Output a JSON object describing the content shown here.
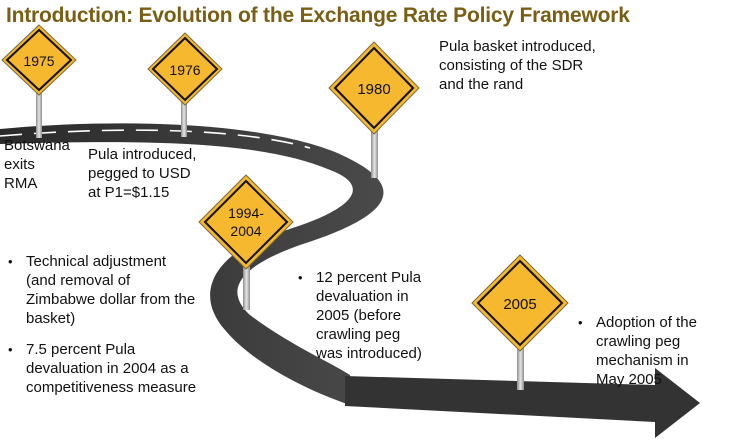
{
  "title": "Introduction: Evolution of the Exchange Rate Policy Framework",
  "signs": {
    "y1975": "1975",
    "y1976": "1976",
    "y1980": "1980",
    "y1994_line1": "1994-",
    "y1994_line2": "2004",
    "y2005": "2005"
  },
  "events": {
    "e1975": [
      "Botswana",
      "exits",
      "RMA"
    ],
    "e1976": [
      "Pula introduced,",
      "pegged to USD",
      "at P1=$1.15"
    ],
    "e1980": [
      "Pula basket introduced,",
      "consisting of the SDR",
      "and the rand"
    ],
    "e1994": [
      [
        "Technical adjustment",
        "(and removal of",
        "Zimbabwe dollar from the",
        "basket)"
      ],
      [
        "7.5 percent Pula",
        "devaluation in 2004 as a",
        "competitiveness measure"
      ]
    ],
    "e2005a": [
      "12 percent Pula",
      "devaluation in",
      "2005 (before",
      "crawling peg",
      "was introduced)"
    ],
    "e2005b": [
      "Adoption of the",
      "crawling peg",
      "mechanism in",
      "May 2005"
    ]
  },
  "colors": {
    "title": "#7a5e14",
    "sign_fill": "#f5b82e",
    "road": "#3a3a3a",
    "post": "#b7b7b7"
  }
}
